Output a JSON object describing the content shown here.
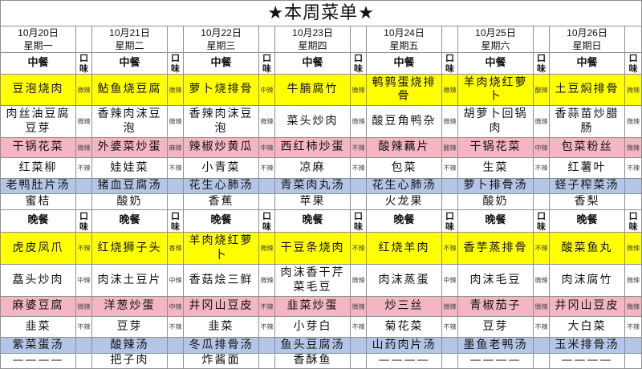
{
  "title": "★本周菜单★",
  "days": [
    {
      "date": "10月20日",
      "weekday": "星期一"
    },
    {
      "date": "10月21日",
      "weekday": "星期二"
    },
    {
      "date": "10月22日",
      "weekday": "星期三"
    },
    {
      "date": "10月23日",
      "weekday": "星期四"
    },
    {
      "date": "10月24日",
      "weekday": "星期五"
    },
    {
      "date": "10月25日",
      "weekday": "星期六"
    },
    {
      "date": "10月26日",
      "weekday": "星期日"
    }
  ],
  "taste_header": "口味",
  "row_colors": [
    "#ffff00",
    "#ffffff",
    "#f4b6c2",
    "#ffffff",
    "#b4c6e7",
    "#ffffff"
  ],
  "lunch": {
    "label": "中餐",
    "rows": [
      {
        "dishes": [
          "豆泡烧肉",
          "鲇鱼烧豆腐",
          "萝卜烧排骨",
          "牛腩腐竹",
          "鹌鹑蛋烧排骨",
          "羊肉烧红萝卜",
          "土豆焖排骨"
        ],
        "tastes": [
          "微辣",
          "微辣",
          "中辣",
          "微辣",
          "微辣",
          "酸辣",
          "微辣"
        ]
      },
      {
        "dishes": [
          "肉丝油豆腐豆芽",
          "香辣肉沫豆泡",
          "香辣肉沫豆泡",
          "菜头炒肉",
          "酸豆角鸭杂",
          "胡萝卜回锅肉",
          "香蒜苗炒腊肠"
        ],
        "tastes": [
          "微辣",
          "微辣",
          "微辣",
          "微辣",
          "微辣",
          "微辣",
          "微辣"
        ]
      },
      {
        "dishes": [
          "干锅花菜",
          "外婆菜炒蛋",
          "辣椒炒黄瓜",
          "西红柿炒蛋",
          "酸辣藕片",
          "干锅花菜",
          "包菜粉丝"
        ],
        "tastes": [
          "微辣",
          "麻辣",
          "中辣",
          "不辣",
          "酸辣",
          "中辣",
          "微辣"
        ]
      },
      {
        "dishes": [
          "红菜柳",
          "娃娃菜",
          "小青菜",
          "凉麻",
          "包菜",
          "生菜",
          "红薯叶"
        ],
        "tastes": [
          "不辣",
          "不辣",
          "不辣",
          "不辣",
          "不辣",
          "不辣",
          "不辣"
        ]
      },
      {
        "dishes": [
          "老鸭肚片汤",
          "猪血豆腐汤",
          "花生心肺汤",
          "青菜肉丸汤",
          "花生心肺汤",
          "萝卜排骨汤",
          "蛏子榨菜汤"
        ],
        "tastes": [
          "",
          "",
          "",
          "",
          "",
          "",
          ""
        ]
      },
      {
        "dishes": [
          "蜜桔",
          "酸奶",
          "香蕉",
          "苹果",
          "火龙果",
          "酸奶",
          "香梨"
        ],
        "tastes": [
          "",
          "",
          "",
          "",
          "",
          "",
          ""
        ]
      }
    ]
  },
  "dinner": {
    "label": "晚餐",
    "rows": [
      {
        "dishes": [
          "虎皮凤爪",
          "红烧狮子头",
          "羊肉烧红萝卜",
          "干豆条烧肉",
          "红烧羊肉",
          "香芋蒸排骨",
          "酸菜鱼丸"
        ],
        "tastes": [
          "不辣",
          "香辣",
          "微辣",
          "不辣",
          "不辣",
          "不辣",
          "微辣"
        ]
      },
      {
        "dishes": [
          "藠头炒肉",
          "肉沫土豆片",
          "香菇烩三鲜",
          "肉沫香干芹菜毛豆",
          "肉沫蒸蛋",
          "肉沫毛豆",
          "肉沫腐竹"
        ],
        "tastes": [
          "中辣",
          "中辣",
          "微辣",
          "微辣",
          "中辣",
          "微辣",
          "微辣"
        ]
      },
      {
        "dishes": [
          "麻婆豆腐",
          "洋葱炒蛋",
          "井冈山豆皮",
          "韭菜炒蛋",
          "炒三丝",
          "青椒茄子",
          "井冈山豆皮"
        ],
        "tastes": [
          "微辣",
          "中辣",
          "不辣",
          "微辣",
          "微辣",
          "微辣",
          "微辣"
        ]
      },
      {
        "dishes": [
          "韭菜",
          "豆芽",
          "韭菜",
          "小芽白",
          "菊花菜",
          "豆芽",
          "大白菜"
        ],
        "tastes": [
          "不辣",
          "不辣",
          "不辣",
          "不辣",
          "不辣",
          "不辣",
          "不辣"
        ]
      },
      {
        "dishes": [
          "紫菜蛋汤",
          "酸辣汤",
          "冬瓜排骨汤",
          "鱼头豆腐汤",
          "山药肉片汤",
          "墨鱼老鸭汤",
          "玉米排骨汤"
        ],
        "tastes": [
          "",
          "",
          "",
          "",
          "",
          "",
          ""
        ]
      },
      {
        "dishes": [
          "————",
          "把子肉",
          "炸酱面",
          "香酥鱼",
          "————",
          "————",
          "————"
        ],
        "tastes": [
          "",
          "",
          "",
          "",
          "",
          "",
          ""
        ]
      }
    ]
  }
}
